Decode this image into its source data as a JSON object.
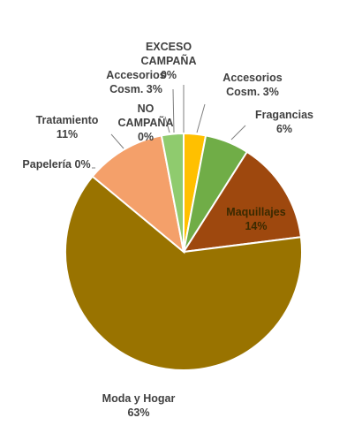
{
  "chart_data": {
    "type": "pie",
    "title": "",
    "slices": [
      {
        "name": "Accesorios Cosm.",
        "label_lines": [
          "Accesorios",
          "Cosm. 3%"
        ],
        "value": 3,
        "color": "#FFC000"
      },
      {
        "name": "Fragancias",
        "label_lines": [
          "Fragancias",
          "6%"
        ],
        "value": 6,
        "color": "#70AD47"
      },
      {
        "name": "Maquillajes",
        "label_lines": [
          "Maquillajes",
          "14%"
        ],
        "value": 14,
        "color": "#9E480E"
      },
      {
        "name": "Moda y Hogar",
        "label_lines": [
          "Moda y Hogar",
          "63%"
        ],
        "value": 63,
        "color": "#997300"
      },
      {
        "name": "Papelería",
        "label_lines": [
          "Papelería 0%"
        ],
        "value": 0,
        "color": "#A5A5A5"
      },
      {
        "name": "Tratamiento",
        "label_lines": [
          "Tratamiento",
          "11%"
        ],
        "value": 11,
        "color": "#F4A06A"
      },
      {
        "name": "NO CAMPAÑA",
        "label_lines": [
          "NO",
          "CAMPAÑA",
          "0%"
        ],
        "value": 0,
        "color": "#C9C9C9"
      },
      {
        "name": "Accesorios Cosm.",
        "label_lines": [
          "Accesorios",
          "Cosm. 3%"
        ],
        "value": 3,
        "color": "#8FCB6E"
      },
      {
        "name": "EXCESO CAMPAÑA",
        "label_lines": [
          "EXCESO",
          "CAMPAÑA",
          "0%"
        ],
        "value": 0,
        "color": "#264478"
      }
    ]
  }
}
